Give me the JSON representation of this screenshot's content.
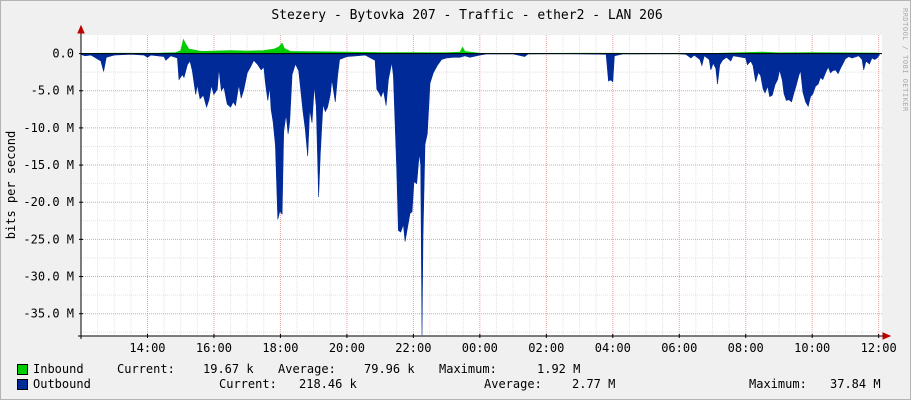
{
  "chart_data": {
    "type": "area",
    "title": "Stezery - Bytovka 207 - Traffic - ether2 - LAN 206",
    "ylabel": "bits per second",
    "side_text": "RRDTOOL / TOBI OETIKER",
    "ylim": [
      -38.0,
      2.5
    ],
    "y_ticks": [
      {
        "value": 0,
        "label": "0.0"
      },
      {
        "value": -5,
        "label": "-5.0 M"
      },
      {
        "value": -10,
        "label": "-10.0 M"
      },
      {
        "value": -15,
        "label": "-15.0 M"
      },
      {
        "value": -20,
        "label": "-20.0 M"
      },
      {
        "value": -25,
        "label": "-25.0 M"
      },
      {
        "value": -30,
        "label": "-30.0 M"
      },
      {
        "value": -35,
        "label": "-35.0 M"
      }
    ],
    "xlim": [
      12.0,
      36.1
    ],
    "x_ticks": [
      {
        "value": 14,
        "label": "14:00"
      },
      {
        "value": 16,
        "label": "16:00"
      },
      {
        "value": 18,
        "label": "18:00"
      },
      {
        "value": 20,
        "label": "20:00"
      },
      {
        "value": 22,
        "label": "22:00"
      },
      {
        "value": 24,
        "label": "00:00"
      },
      {
        "value": 26,
        "label": "02:00"
      },
      {
        "value": 28,
        "label": "04:00"
      },
      {
        "value": 30,
        "label": "06:00"
      },
      {
        "value": 32,
        "label": "08:00"
      },
      {
        "value": 34,
        "label": "10:00"
      },
      {
        "value": 36,
        "label": "12:00"
      }
    ],
    "series": [
      {
        "name": "Inbound",
        "color": "#00cc00",
        "points": [
          [
            12.02,
            0.02
          ],
          [
            12.7,
            0.05
          ],
          [
            13.6,
            0.05
          ],
          [
            14.4,
            0.08
          ],
          [
            14.85,
            0.15
          ],
          [
            15.0,
            0.4
          ],
          [
            15.08,
            1.9
          ],
          [
            15.15,
            1.3
          ],
          [
            15.25,
            0.6
          ],
          [
            15.4,
            0.5
          ],
          [
            15.6,
            0.3
          ],
          [
            16.0,
            0.35
          ],
          [
            16.5,
            0.4
          ],
          [
            17.0,
            0.35
          ],
          [
            17.5,
            0.4
          ],
          [
            17.8,
            0.6
          ],
          [
            17.95,
            0.9
          ],
          [
            18.05,
            1.4
          ],
          [
            18.12,
            0.7
          ],
          [
            18.3,
            0.3
          ],
          [
            19.0,
            0.25
          ],
          [
            20.0,
            0.2
          ],
          [
            21.0,
            0.15
          ],
          [
            22.0,
            0.15
          ],
          [
            23.0,
            0.12
          ],
          [
            23.4,
            0.2
          ],
          [
            23.48,
            0.85
          ],
          [
            23.55,
            0.3
          ],
          [
            24.0,
            0.05
          ],
          [
            25.0,
            0.03
          ],
          [
            27.0,
            0.05
          ],
          [
            28.0,
            0.05
          ],
          [
            31.0,
            0.02
          ],
          [
            32.5,
            0.2
          ],
          [
            33.0,
            0.1
          ],
          [
            34.0,
            0.15
          ],
          [
            35.0,
            0.1
          ],
          [
            36.0,
            0.08
          ]
        ]
      },
      {
        "name": "Outbound",
        "color": "#002a97",
        "points": [
          [
            12.02,
            -0.15
          ],
          [
            12.12,
            -0.3
          ],
          [
            12.3,
            -0.2
          ],
          [
            12.6,
            -1.0
          ],
          [
            12.68,
            -2.4
          ],
          [
            12.76,
            -0.5
          ],
          [
            13.0,
            -0.2
          ],
          [
            13.5,
            -0.1
          ],
          [
            13.9,
            -0.2
          ],
          [
            14.0,
            -0.5
          ],
          [
            14.1,
            -0.2
          ],
          [
            14.5,
            -0.4
          ],
          [
            14.55,
            -0.9
          ],
          [
            14.7,
            -0.3
          ],
          [
            14.9,
            -0.6
          ],
          [
            14.95,
            -3.5
          ],
          [
            15.05,
            -2.8
          ],
          [
            15.1,
            -3.2
          ],
          [
            15.2,
            -1.5
          ],
          [
            15.28,
            -1.0
          ],
          [
            15.35,
            -2.3
          ],
          [
            15.45,
            -5.5
          ],
          [
            15.5,
            -4.2
          ],
          [
            15.58,
            -6.1
          ],
          [
            15.68,
            -5.6
          ],
          [
            15.78,
            -7.2
          ],
          [
            15.85,
            -6.2
          ],
          [
            15.92,
            -4.3
          ],
          [
            16.0,
            -5.5
          ],
          [
            16.1,
            -4.8
          ],
          [
            16.15,
            -2.0
          ],
          [
            16.22,
            -5.0
          ],
          [
            16.3,
            -4.5
          ],
          [
            16.4,
            -6.8
          ],
          [
            16.5,
            -7.2
          ],
          [
            16.58,
            -6.5
          ],
          [
            16.65,
            -7.0
          ],
          [
            16.75,
            -4.2
          ],
          [
            16.82,
            -6.0
          ],
          [
            16.9,
            -4.8
          ],
          [
            17.0,
            -2.6
          ],
          [
            17.1,
            -1.8
          ],
          [
            17.2,
            -0.9
          ],
          [
            17.32,
            -1.5
          ],
          [
            17.42,
            -2.2
          ],
          [
            17.5,
            -1.8
          ],
          [
            17.55,
            -4.0
          ],
          [
            17.62,
            -6.3
          ],
          [
            17.68,
            -4.5
          ],
          [
            17.72,
            -7.5
          ],
          [
            17.78,
            -9.2
          ],
          [
            17.85,
            -12.3
          ],
          [
            17.92,
            -22.3
          ],
          [
            17.98,
            -21.2
          ],
          [
            18.05,
            -21.6
          ],
          [
            18.1,
            -10.5
          ],
          [
            18.17,
            -8.2
          ],
          [
            18.23,
            -10.8
          ],
          [
            18.28,
            -9.2
          ],
          [
            18.35,
            -2.8
          ],
          [
            18.45,
            -1.4
          ],
          [
            18.55,
            -2.3
          ],
          [
            18.68,
            -7.8
          ],
          [
            18.75,
            -10.2
          ],
          [
            18.82,
            -13.8
          ],
          [
            18.88,
            -7.5
          ],
          [
            18.95,
            -9.3
          ],
          [
            19.02,
            -4.3
          ],
          [
            19.08,
            -7.2
          ],
          [
            19.15,
            -19.3
          ],
          [
            19.2,
            -13.5
          ],
          [
            19.28,
            -6.8
          ],
          [
            19.35,
            -7.8
          ],
          [
            19.42,
            -7.2
          ],
          [
            19.5,
            -5.5
          ],
          [
            19.55,
            -3.5
          ],
          [
            19.65,
            -6.5
          ],
          [
            19.72,
            -3.0
          ],
          [
            19.78,
            -0.8
          ],
          [
            20.0,
            -0.4
          ],
          [
            20.3,
            -0.3
          ],
          [
            20.55,
            -0.2
          ],
          [
            20.85,
            -0.9
          ],
          [
            20.9,
            -4.8
          ],
          [
            20.96,
            -5.2
          ],
          [
            21.03,
            -5.8
          ],
          [
            21.1,
            -5.0
          ],
          [
            21.18,
            -7.0
          ],
          [
            21.25,
            -3.5
          ],
          [
            21.35,
            -1.2
          ],
          [
            21.4,
            -3.0
          ],
          [
            21.5,
            -15.5
          ],
          [
            21.55,
            -23.8
          ],
          [
            21.62,
            -24.0
          ],
          [
            21.7,
            -23.0
          ],
          [
            21.75,
            -25.3
          ],
          [
            21.82,
            -23.5
          ],
          [
            21.9,
            -21.5
          ],
          [
            21.96,
            -21.3
          ],
          [
            22.02,
            -17.2
          ],
          [
            22.1,
            -17.5
          ],
          [
            22.18,
            -13.4
          ],
          [
            22.22,
            -15.0
          ],
          [
            22.26,
            -37.9
          ],
          [
            22.29,
            -24.5
          ],
          [
            22.35,
            -12.2
          ],
          [
            22.42,
            -10.8
          ],
          [
            22.5,
            -4.0
          ],
          [
            22.6,
            -2.6
          ],
          [
            22.72,
            -1.6
          ],
          [
            22.85,
            -0.8
          ],
          [
            23.0,
            -0.6
          ],
          [
            23.2,
            -0.5
          ],
          [
            23.4,
            -0.5
          ],
          [
            23.55,
            -0.3
          ],
          [
            23.7,
            -0.5
          ],
          [
            24.0,
            -0.2
          ],
          [
            24.2,
            -0.05
          ],
          [
            25.0,
            -0.05
          ],
          [
            25.35,
            -0.4
          ],
          [
            25.45,
            -0.05
          ],
          [
            26.5,
            -0.02
          ],
          [
            27.8,
            -0.1
          ],
          [
            27.87,
            -3.7
          ],
          [
            27.93,
            -3.5
          ],
          [
            28.0,
            -3.8
          ],
          [
            28.05,
            -0.3
          ],
          [
            28.3,
            -0.05
          ],
          [
            29.9,
            -0.02
          ],
          [
            30.2,
            -0.1
          ],
          [
            30.35,
            -0.6
          ],
          [
            30.45,
            -0.2
          ],
          [
            30.62,
            -0.8
          ],
          [
            30.68,
            -1.6
          ],
          [
            30.75,
            -0.3
          ],
          [
            30.9,
            -0.8
          ],
          [
            30.95,
            -2.2
          ],
          [
            31.02,
            -1.3
          ],
          [
            31.1,
            -2.0
          ],
          [
            31.15,
            -4.1
          ],
          [
            31.22,
            -1.5
          ],
          [
            31.3,
            -0.9
          ],
          [
            31.42,
            -0.5
          ],
          [
            31.5,
            -0.8
          ],
          [
            31.55,
            -1.0
          ],
          [
            31.62,
            -0.3
          ],
          [
            32.0,
            -0.6
          ],
          [
            32.05,
            -1.5
          ],
          [
            32.15,
            -1.0
          ],
          [
            32.22,
            -1.6
          ],
          [
            32.3,
            -3.8
          ],
          [
            32.38,
            -2.5
          ],
          [
            32.45,
            -3.0
          ],
          [
            32.52,
            -4.7
          ],
          [
            32.58,
            -5.3
          ],
          [
            32.66,
            -4.4
          ],
          [
            32.72,
            -5.8
          ],
          [
            32.8,
            -5.6
          ],
          [
            32.88,
            -4.2
          ],
          [
            32.96,
            -3.5
          ],
          [
            33.02,
            -2.2
          ],
          [
            33.1,
            -3.6
          ],
          [
            33.15,
            -5.4
          ],
          [
            33.22,
            -6.3
          ],
          [
            33.3,
            -6.2
          ],
          [
            33.38,
            -6.5
          ],
          [
            33.45,
            -5.3
          ],
          [
            33.52,
            -4.3
          ],
          [
            33.6,
            -2.9
          ],
          [
            33.65,
            -2.3
          ],
          [
            33.72,
            -5.2
          ],
          [
            33.8,
            -6.5
          ],
          [
            33.88,
            -7.1
          ],
          [
            33.95,
            -5.8
          ],
          [
            34.02,
            -5.4
          ],
          [
            34.1,
            -4.4
          ],
          [
            34.18,
            -4.1
          ],
          [
            34.25,
            -3.2
          ],
          [
            34.32,
            -3.5
          ],
          [
            34.4,
            -2.6
          ],
          [
            34.48,
            -1.8
          ],
          [
            34.55,
            -2.6
          ],
          [
            34.62,
            -2.3
          ],
          [
            34.7,
            -2.2
          ],
          [
            34.78,
            -2.7
          ],
          [
            34.85,
            -2.0
          ],
          [
            34.92,
            -1.4
          ],
          [
            35.0,
            -0.7
          ],
          [
            35.1,
            -0.4
          ],
          [
            35.2,
            -0.6
          ],
          [
            35.4,
            -0.3
          ],
          [
            35.5,
            -0.8
          ],
          [
            35.55,
            -2.2
          ],
          [
            35.62,
            -1.0
          ],
          [
            35.72,
            -1.4
          ],
          [
            35.8,
            -0.6
          ],
          [
            35.88,
            -0.8
          ],
          [
            35.95,
            -0.6
          ],
          [
            36.02,
            -0.2
          ]
        ]
      }
    ],
    "legend": [
      {
        "name": "Inbound",
        "current": "19.67 k",
        "average": "79.96 k",
        "maximum": "1.92 M"
      },
      {
        "name": "Outbound",
        "current": "218.46 k",
        "average": "2.77 M",
        "maximum": "37.84 M"
      }
    ]
  },
  "legend_labels": {
    "current": "Current:",
    "average": "Average:",
    "maximum": "Maximum:"
  }
}
